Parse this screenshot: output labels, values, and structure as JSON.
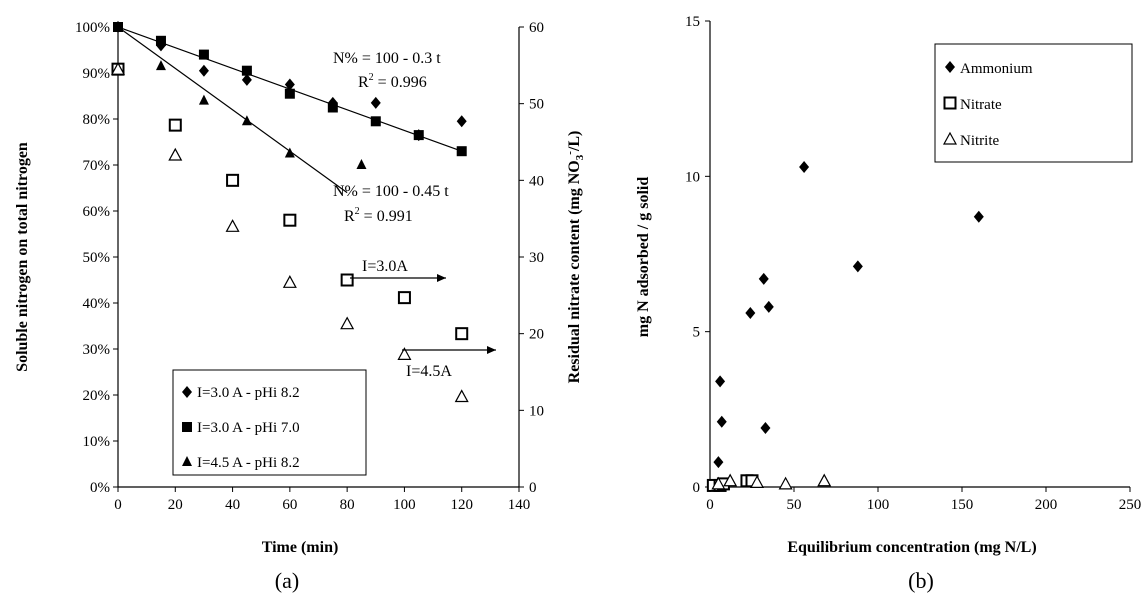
{
  "chart_data": [
    {
      "type": "scatter",
      "panel_label": "(a)",
      "xlabel": "Time (min)",
      "ylabel": "Soluble nitrogen on total nitrogen",
      "ylabel2_prefix": "Residual nitrate content (mg NO",
      "ylabel2_sub": "3",
      "ylabel2_sup": "-",
      "ylabel2_suffix": "/L)",
      "xlim": [
        0,
        140
      ],
      "ylim": [
        0,
        100
      ],
      "y2lim": [
        0,
        60
      ],
      "xticks": [
        "0",
        "20",
        "40",
        "60",
        "80",
        "100",
        "120",
        "140"
      ],
      "yticks": [
        "0%",
        "10%",
        "20%",
        "30%",
        "40%",
        "50%",
        "60%",
        "70%",
        "80%",
        "90%",
        "100%"
      ],
      "y2ticks": [
        "0",
        "10",
        "20",
        "30",
        "40",
        "50",
        "60"
      ],
      "series": [
        {
          "name": "I=3.0 A - pHi 8.2",
          "marker": "diamond",
          "axis": "left",
          "x": [
            0,
            15,
            30,
            45,
            60,
            75,
            90,
            105,
            120
          ],
          "y": [
            100,
            96,
            90.5,
            88.5,
            87.5,
            83.5,
            83.5,
            76.5,
            79.5
          ]
        },
        {
          "name": "I=3.0 A - pHi 7.0",
          "marker": "square",
          "axis": "left",
          "x": [
            0,
            15,
            30,
            45,
            60,
            75,
            90,
            105,
            120
          ],
          "y": [
            100,
            97,
            94,
            90.5,
            85.5,
            82.5,
            79.5,
            76.5,
            73
          ]
        },
        {
          "name": "I=4.5 A - pHi 8.2",
          "marker": "triangle",
          "axis": "left",
          "x": [
            0,
            15,
            30,
            45,
            60,
            85
          ],
          "y": [
            100,
            91.5,
            84,
            79.5,
            72.5,
            70
          ]
        },
        {
          "name": "",
          "marker": "open-square",
          "axis": "right",
          "x": [
            0,
            20,
            40,
            60,
            80,
            100,
            120
          ],
          "y": [
            54.5,
            47.2,
            40,
            34.8,
            27,
            24.7,
            20
          ]
        },
        {
          "name": "",
          "marker": "open-triangle",
          "axis": "right",
          "x": [
            0,
            20,
            40,
            60,
            80,
            100,
            120
          ],
          "y": [
            54.5,
            43.3,
            34,
            26.7,
            21.3,
            17.3,
            11.8
          ]
        }
      ],
      "fit_lines": [
        {
          "x": [
            0,
            120
          ],
          "y": [
            100,
            73
          ]
        },
        {
          "x": [
            0,
            80
          ],
          "y": [
            100,
            64
          ]
        }
      ],
      "annotations": {
        "eq1": "N% = 100 - 0.3 t",
        "r1": "R",
        "r1_sup": "2",
        "r1_val": " = 0.996",
        "eq2": "N% = 100 - 0.45 t",
        "r2": "R",
        "r2_sup": "2",
        "r2_val": " = 0.991",
        "arrow1": "I=3.0A",
        "arrow2": "I=4.5A"
      },
      "legend_position": "bottom-left"
    },
    {
      "type": "scatter",
      "panel_label": "(b)",
      "xlabel": "Equilibrium concentration (mg N/L)",
      "ylabel": "mg N adsorbed / g solid",
      "xlim": [
        0,
        250
      ],
      "ylim": [
        0,
        15
      ],
      "xticks": [
        "0",
        "50",
        "100",
        "150",
        "200",
        "250"
      ],
      "yticks": [
        "0",
        "5",
        "10",
        "15"
      ],
      "series": [
        {
          "name": "Ammonium",
          "marker": "diamond",
          "x": [
            5,
            6,
            7,
            24,
            32,
            35,
            33,
            56,
            88,
            160
          ],
          "y": [
            0.8,
            3.4,
            2.1,
            5.6,
            6.7,
            5.8,
            1.9,
            10.3,
            7.1,
            8.7
          ]
        },
        {
          "name": "Nitrate",
          "marker": "open-square",
          "x": [
            2,
            6,
            8,
            22,
            25
          ],
          "y": [
            0.05,
            0.05,
            0.1,
            0.2,
            0.2
          ]
        },
        {
          "name": "Nitrite",
          "marker": "open-triangle",
          "x": [
            5,
            12,
            28,
            45,
            68
          ],
          "y": [
            0.1,
            0.2,
            0.15,
            0.1,
            0.2
          ]
        }
      ],
      "legend_position": "top-right"
    }
  ]
}
